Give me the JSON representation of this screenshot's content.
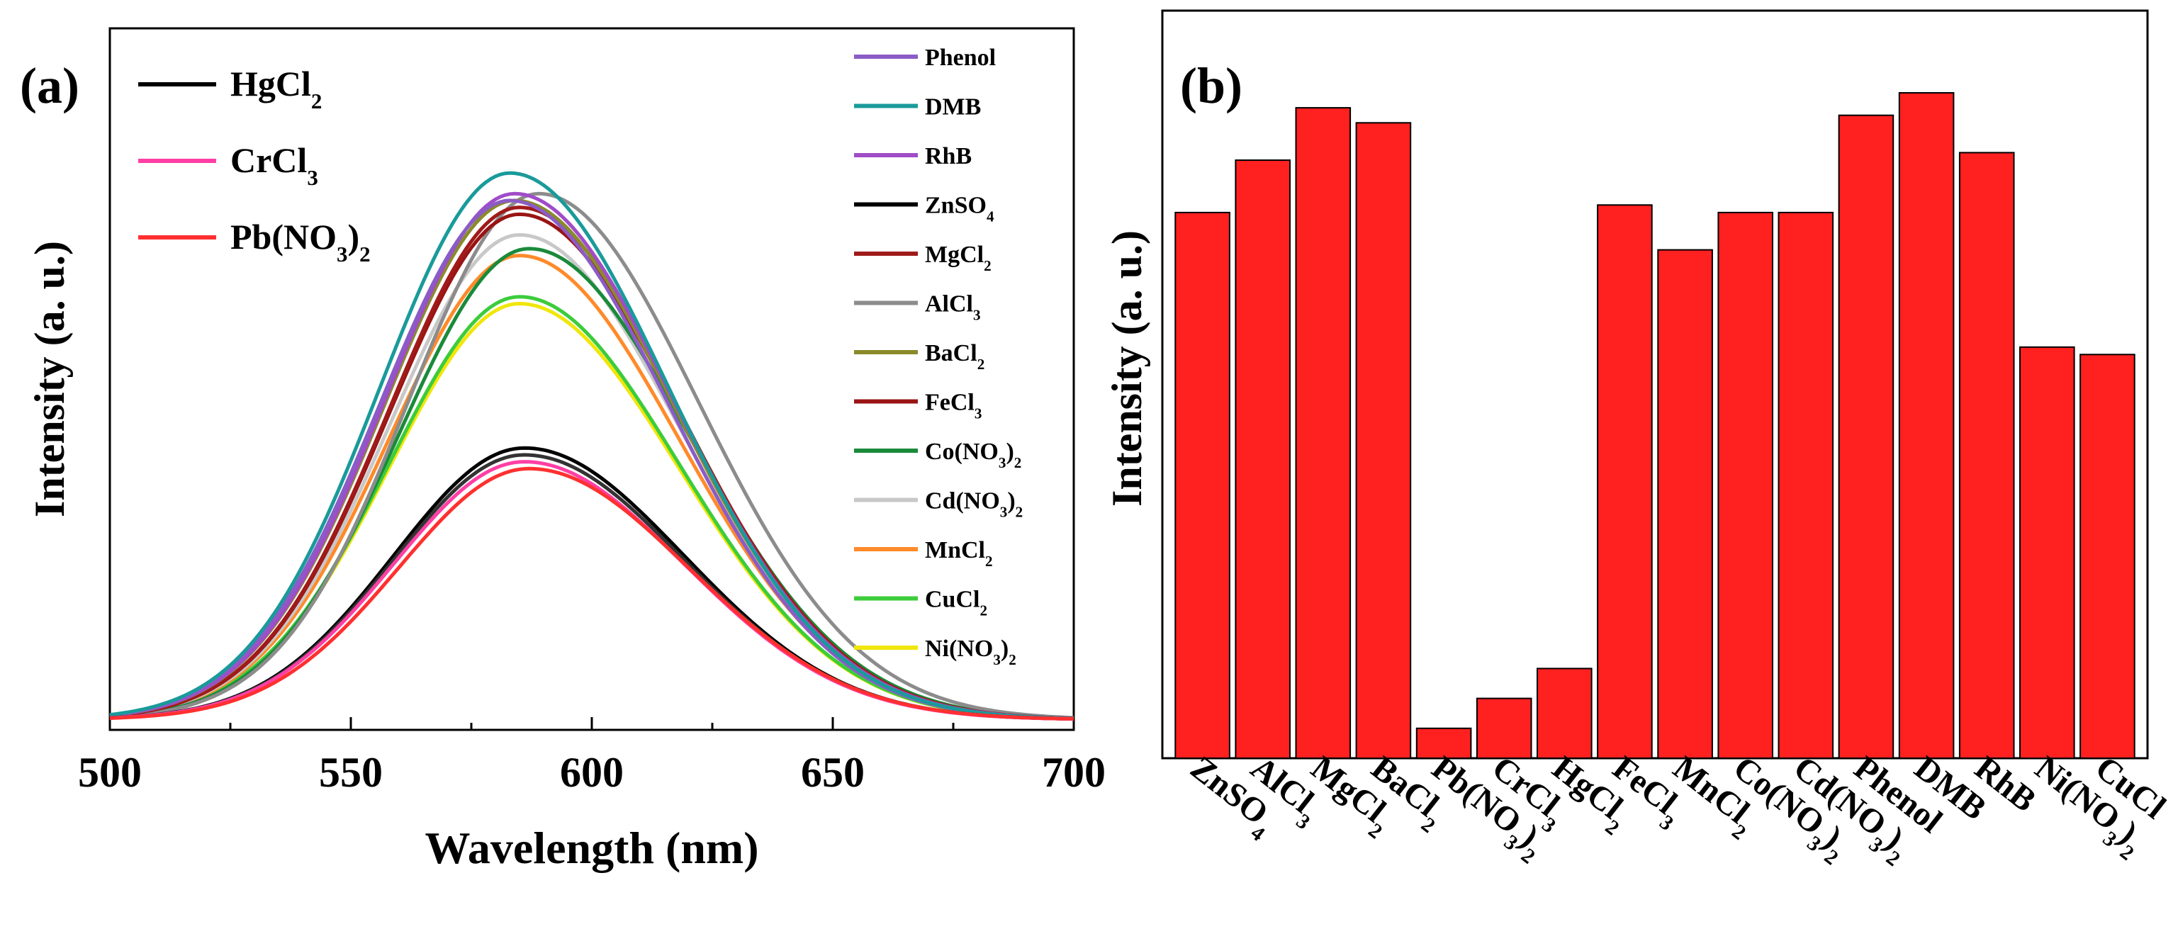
{
  "chart_data": [
    {
      "panel": "(a)",
      "type": "line",
      "xlabel": "Wavelength (nm)",
      "ylabel": "Intensity (a. u.)",
      "xlim": [
        500,
        700
      ],
      "ylim": [
        0,
        100
      ],
      "xticks": [
        "500",
        "550",
        "600",
        "650",
        "700"
      ],
      "legend_left": [
        {
          "name": "HgCl",
          "sub": "2",
          "tail": "",
          "color": "#000000"
        },
        {
          "name": "CrCl",
          "sub": "3",
          "tail": "",
          "color": "#ff3fa5"
        },
        {
          "name": "Pb(NO",
          "sub": "3",
          "tail": ")",
          "sub2": "2",
          "color": "#ff3030"
        }
      ],
      "legend_right": [
        {
          "name": "Phenol",
          "sub": "",
          "tail": "",
          "color": "#8a5cc6"
        },
        {
          "name": "DMB",
          "sub": "",
          "tail": "",
          "color": "#1a9a9a"
        },
        {
          "name": "RhB",
          "sub": "",
          "tail": "",
          "color": "#a04cc8"
        },
        {
          "name": "ZnSO",
          "sub": "4",
          "tail": "",
          "color": "#000000"
        },
        {
          "name": "MgCl",
          "sub": "2",
          "tail": "",
          "color": "#a01a1a"
        },
        {
          "name": "AlCl",
          "sub": "3",
          "tail": "",
          "color": "#8c8c8c"
        },
        {
          "name": "BaCl",
          "sub": "2",
          "tail": "",
          "color": "#8a8a2a"
        },
        {
          "name": "FeCl",
          "sub": "3",
          "tail": "",
          "color": "#9a1414"
        },
        {
          "name": "Co(NO",
          "sub": "3",
          "tail": ")",
          "sub2": "2",
          "color": "#1a8a3a"
        },
        {
          "name": "Cd(NO",
          "sub": "3",
          "tail": ")",
          "sub2": "2",
          "color": "#c8c8c8"
        },
        {
          "name": "MnCl",
          "sub": "2",
          "tail": "",
          "color": "#ff8a2a"
        },
        {
          "name": "CuCl",
          "sub": "2",
          "tail": "",
          "color": "#3ccc3c"
        },
        {
          "name": "Ni(NO",
          "sub": "3",
          "tail": ")",
          "sub2": "2",
          "color": "#f0e60a"
        }
      ],
      "series": [
        {
          "name": "Ni(NO3)2",
          "color": "#f0e60a",
          "peak_x": 585,
          "peak_y": 62
        },
        {
          "name": "CuCl2",
          "color": "#3ccc3c",
          "peak_x": 585,
          "peak_y": 63
        },
        {
          "name": "MnCl2",
          "color": "#ff8a2a",
          "peak_x": 585,
          "peak_y": 69
        },
        {
          "name": "Cd(NO3)2",
          "color": "#c8c8c8",
          "peak_x": 585,
          "peak_y": 72
        },
        {
          "name": "Co(NO3)2",
          "color": "#1a8a3a",
          "peak_x": 587,
          "peak_y": 70
        },
        {
          "name": "AlCl3",
          "color": "#8c8c8c",
          "peak_x": 589,
          "peak_y": 78
        },
        {
          "name": "FeCl3",
          "color": "#9a1414",
          "peak_x": 585,
          "peak_y": 75
        },
        {
          "name": "MgCl2",
          "color": "#a01a1a",
          "peak_x": 585,
          "peak_y": 76
        },
        {
          "name": "BaCl2",
          "color": "#8a8a2a",
          "peak_x": 584,
          "peak_y": 77
        },
        {
          "name": "RhB",
          "color": "#a04cc8",
          "peak_x": 584,
          "peak_y": 78
        },
        {
          "name": "Phenol",
          "color": "#8a5cc6",
          "peak_x": 583,
          "peak_y": 77
        },
        {
          "name": "DMB",
          "color": "#1a9a9a",
          "peak_x": 583,
          "peak_y": 81
        },
        {
          "name": "ZnSO4",
          "color": "#000000",
          "peak_x": 586,
          "peak_y": 41
        },
        {
          "name": "HgCl2",
          "color": "#333333",
          "peak_x": 586,
          "peak_y": 40
        },
        {
          "name": "CrCl3",
          "color": "#ff3fa5",
          "peak_x": 586,
          "peak_y": 39
        },
        {
          "name": "Pb(NO3)2",
          "color": "#ff3030",
          "peak_x": 587,
          "peak_y": 38
        }
      ]
    },
    {
      "panel": "(b)",
      "type": "bar",
      "ylabel": "Intensity (a. u.)",
      "ylim": [
        0,
        100
      ],
      "bar_color": "#ff2020",
      "categories": [
        {
          "name": "ZnSO",
          "sub": "4",
          "tail": ""
        },
        {
          "name": "AlCl",
          "sub": "3",
          "tail": ""
        },
        {
          "name": "MgCl",
          "sub": "2",
          "tail": ""
        },
        {
          "name": "BaCl",
          "sub": "2",
          "tail": ""
        },
        {
          "name": "Pb(NO",
          "sub": "3",
          "tail": ")",
          "sub2": "2"
        },
        {
          "name": "CrCl",
          "sub": "3",
          "tail": ""
        },
        {
          "name": "HgCl",
          "sub": "2",
          "tail": ""
        },
        {
          "name": "FeCl",
          "sub": "3",
          "tail": ""
        },
        {
          "name": "MnCl",
          "sub": "2",
          "tail": ""
        },
        {
          "name": "Co(NO",
          "sub": "3",
          "tail": ")",
          "sub2": "2"
        },
        {
          "name": "Cd(NO",
          "sub": "3",
          "tail": ")",
          "sub2": "2"
        },
        {
          "name": "Phenol",
          "sub": "",
          "tail": ""
        },
        {
          "name": "DMB",
          "sub": "",
          "tail": ""
        },
        {
          "name": "RhB",
          "sub": "",
          "tail": ""
        },
        {
          "name": "Ni(NO",
          "sub": "3",
          "tail": ")",
          "sub2": "2"
        },
        {
          "name": "CuCl",
          "sub": "",
          "tail": ""
        }
      ],
      "values": [
        73,
        80,
        87,
        85,
        4,
        8,
        12,
        74,
        68,
        73,
        73,
        86,
        89,
        81,
        55,
        54
      ]
    }
  ]
}
